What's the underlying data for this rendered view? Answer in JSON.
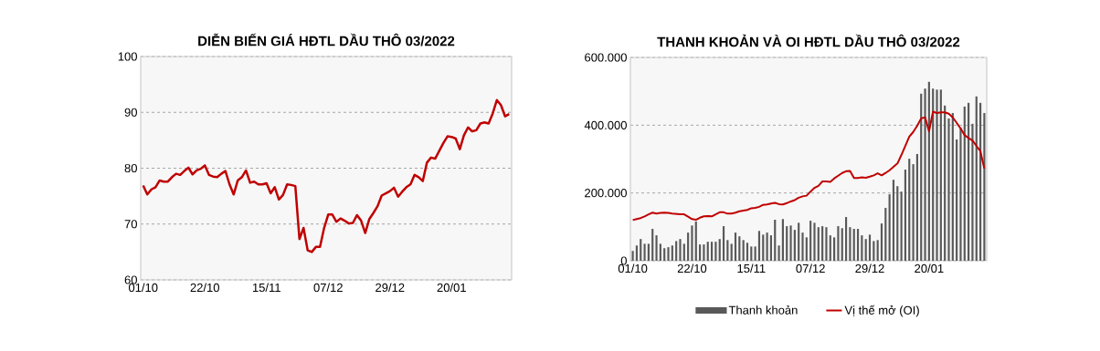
{
  "chart_data": [
    {
      "type": "line",
      "title": "DIỄN BIẾN GIÁ HĐTL DẦU THÔ 03/2022",
      "categories": [
        "01/10",
        null,
        null,
        null,
        null,
        null,
        null,
        null,
        null,
        null,
        null,
        null,
        null,
        null,
        null,
        "22/10",
        null,
        null,
        null,
        null,
        null,
        null,
        null,
        null,
        null,
        null,
        null,
        null,
        null,
        null,
        "15/11",
        null,
        null,
        null,
        null,
        null,
        null,
        null,
        null,
        null,
        null,
        null,
        null,
        null,
        null,
        "07/12",
        null,
        null,
        null,
        null,
        null,
        null,
        null,
        null,
        null,
        null,
        null,
        null,
        null,
        null,
        "29/12",
        null,
        null,
        null,
        null,
        null,
        null,
        null,
        null,
        null,
        null,
        null,
        null,
        null,
        null,
        "20/01",
        null,
        null,
        null,
        null,
        null,
        null,
        null,
        null,
        null,
        null,
        null,
        null,
        null,
        null
      ],
      "series": [
        {
          "color": "#c00000",
          "values": [
            76.9,
            75.3,
            76.2,
            76.6,
            77.8,
            77.6,
            77.6,
            78.4,
            79.0,
            78.8,
            79.5,
            80.1,
            78.9,
            79.6,
            79.9,
            80.5,
            78.8,
            78.5,
            78.4,
            79.0,
            79.5,
            77.1,
            75.3,
            77.8,
            78.4,
            79.6,
            77.4,
            77.6,
            77.1,
            77.1,
            77.3,
            75.5,
            76.6,
            74.4,
            75.2,
            77.1,
            77.0,
            76.8,
            67.3,
            69.3,
            65.3,
            65.0,
            65.9,
            65.9,
            69.3,
            71.7,
            71.7,
            70.4,
            71.0,
            70.6,
            70.1,
            70.2,
            71.6,
            70.6,
            68.4,
            70.9,
            72.0,
            73.2,
            75.1,
            75.5,
            75.9,
            76.5,
            74.9,
            75.8,
            76.6,
            77.1,
            78.8,
            78.4,
            77.7,
            81.0,
            81.9,
            81.7,
            83.1,
            84.5,
            85.7,
            85.6,
            85.3,
            83.4,
            85.9,
            87.3,
            86.6,
            86.8,
            88.0,
            88.2,
            88.0,
            89.8,
            92.2,
            91.3,
            89.3,
            89.7
          ]
        }
      ],
      "ylim": [
        60,
        100
      ],
      "yticks": [
        60,
        70,
        80,
        90,
        100
      ],
      "grid": "y"
    },
    {
      "type": "bar",
      "title": "THANH KHOẢN VÀ OI HĐTL DẦU THÔ 03/2022",
      "categories": [
        "01/10",
        null,
        null,
        null,
        null,
        null,
        null,
        null,
        null,
        null,
        null,
        null,
        null,
        null,
        null,
        "22/10",
        null,
        null,
        null,
        null,
        null,
        null,
        null,
        null,
        null,
        null,
        null,
        null,
        null,
        null,
        "15/11",
        null,
        null,
        null,
        null,
        null,
        null,
        null,
        null,
        null,
        null,
        null,
        null,
        null,
        null,
        "07/12",
        null,
        null,
        null,
        null,
        null,
        null,
        null,
        null,
        null,
        null,
        null,
        null,
        null,
        null,
        "29/12",
        null,
        null,
        null,
        null,
        null,
        null,
        null,
        null,
        null,
        null,
        null,
        null,
        null,
        null,
        "20/01",
        null,
        null,
        null,
        null,
        null,
        null,
        null,
        null,
        null,
        null,
        null,
        null,
        null,
        null
      ],
      "series": [
        {
          "name": "Thanh khoản",
          "type": "bar",
          "color": "#595959",
          "values": [
            29000,
            45000,
            64000,
            50000,
            50000,
            94000,
            75000,
            50000,
            37000,
            40000,
            45000,
            58000,
            64000,
            50000,
            83000,
            104000,
            116000,
            48000,
            48000,
            56000,
            56000,
            56000,
            64000,
            102000,
            61000,
            50000,
            83000,
            72000,
            61000,
            53000,
            42000,
            42000,
            88000,
            77000,
            83000,
            75000,
            121000,
            45000,
            123000,
            102000,
            104000,
            91000,
            112000,
            83000,
            69000,
            118000,
            112000,
            99000,
            102000,
            99000,
            75000,
            69000,
            102000,
            96000,
            129000,
            99000,
            94000,
            94000,
            75000,
            64000,
            77000,
            58000,
            61000,
            110000,
            156000,
            196000,
            239000,
            220000,
            204000,
            269000,
            301000,
            285000,
            315000,
            493000,
            508000,
            528000,
            508000,
            505000,
            505000,
            458000,
            420000,
            436000,
            358000,
            393000,
            455000,
            466000,
            404000,
            485000,
            466000,
            436000
          ]
        },
        {
          "name": "Vị thế mở (OI)",
          "type": "line",
          "color": "#c00000",
          "values": [
            120000,
            123000,
            126000,
            131000,
            137000,
            142000,
            139000,
            141000,
            142000,
            141000,
            139000,
            138000,
            137000,
            137000,
            130000,
            123000,
            121000,
            127000,
            131000,
            132000,
            131000,
            137000,
            143000,
            143000,
            139000,
            139000,
            142000,
            146000,
            148000,
            150000,
            155000,
            156000,
            159000,
            165000,
            166000,
            169000,
            171000,
            167000,
            166000,
            170000,
            175000,
            179000,
            186000,
            190000,
            192000,
            204000,
            215000,
            221000,
            234000,
            234000,
            233000,
            243000,
            251000,
            259000,
            264000,
            265000,
            244000,
            244000,
            246000,
            245000,
            248000,
            252000,
            258000,
            252000,
            259000,
            267000,
            277000,
            287000,
            312000,
            339000,
            366000,
            380000,
            398000,
            420000,
            423000,
            382000,
            440000,
            436000,
            438000,
            438000,
            434000,
            423000,
            407000,
            390000,
            371000,
            362000,
            355000,
            339000,
            323000,
            272000
          ]
        }
      ],
      "ylim": [
        0,
        600000
      ],
      "yticks": [
        0,
        {
          "value": 200000,
          "label": "200.000"
        },
        {
          "value": 400000,
          "label": "400.000"
        },
        {
          "value": 600000,
          "label": "600.000"
        }
      ],
      "grid": "y",
      "legend": "bottom"
    }
  ]
}
